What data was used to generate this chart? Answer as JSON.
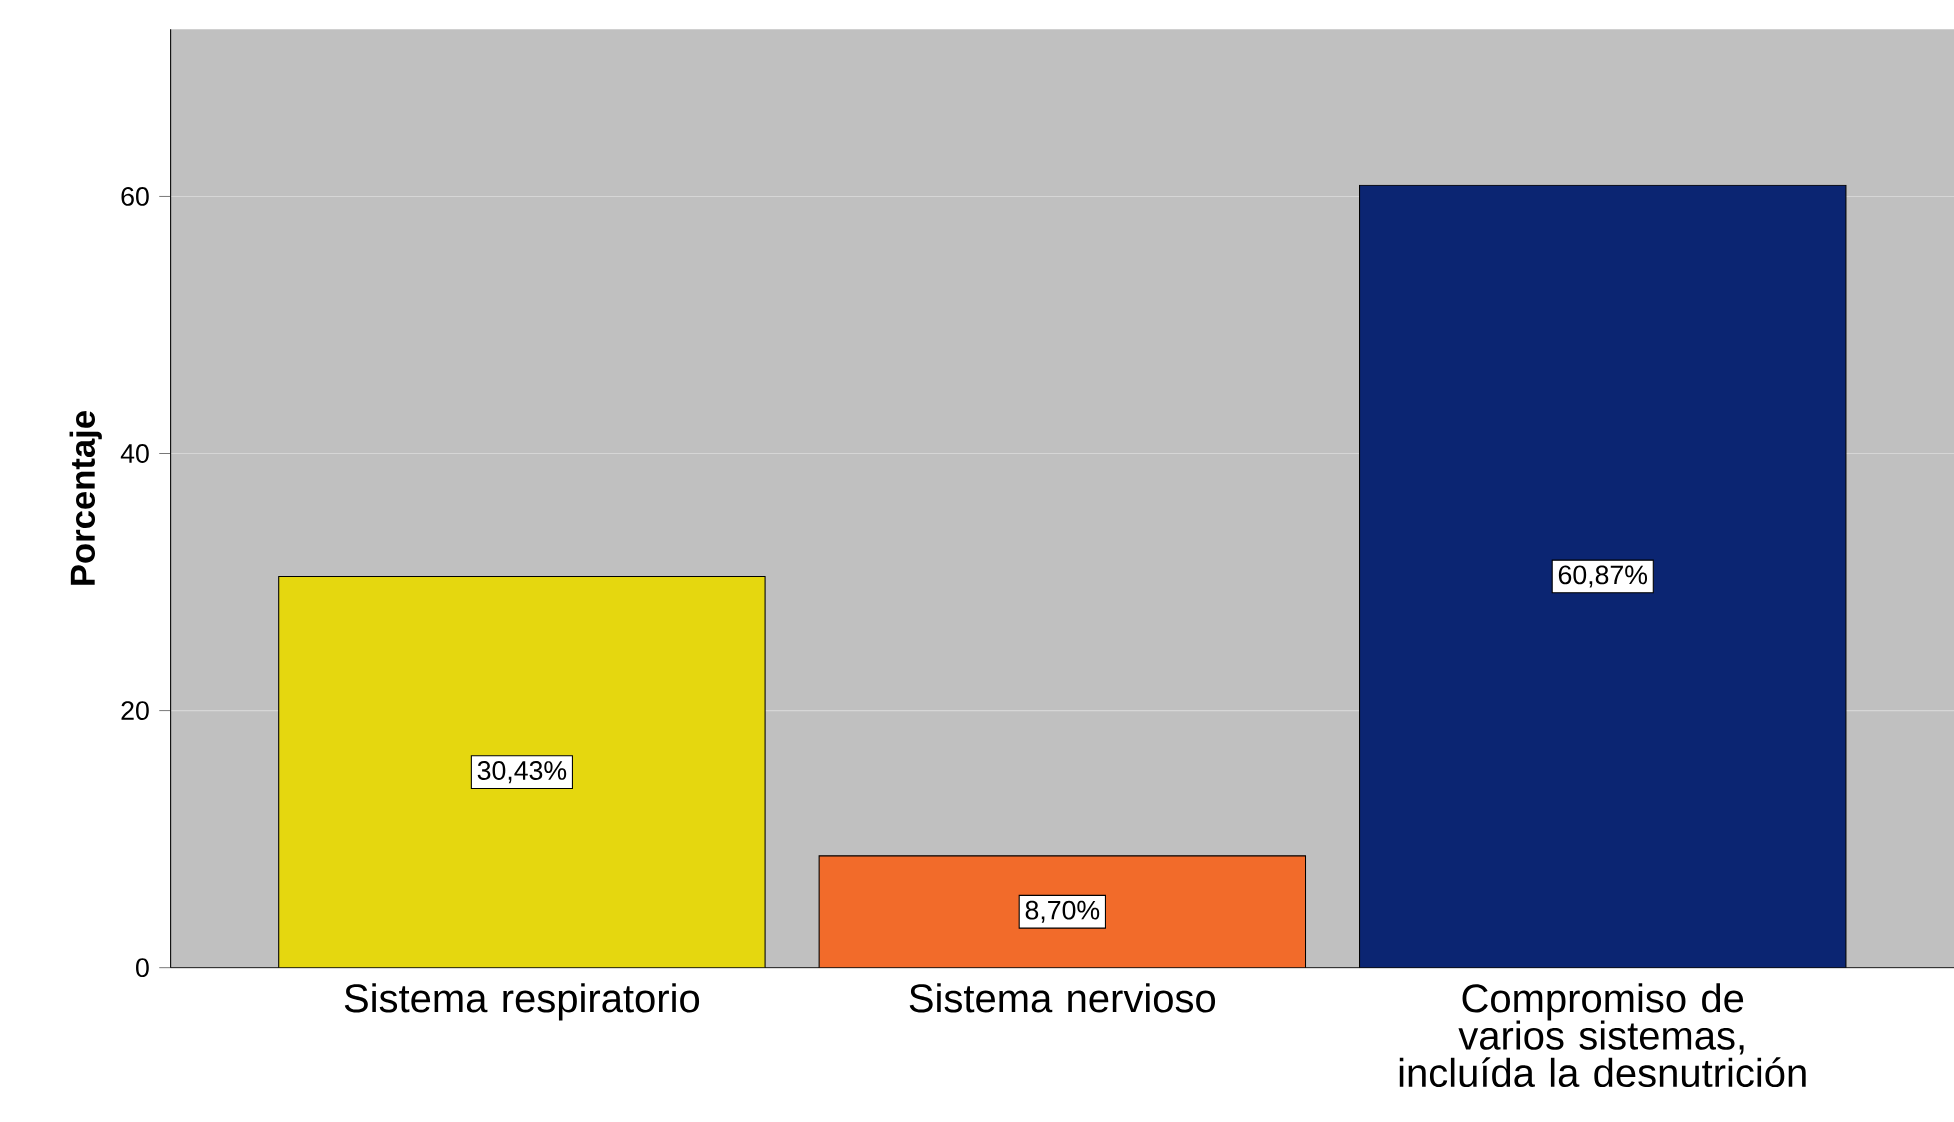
{
  "chart_data": {
    "type": "bar",
    "ylabel": "Porcentaje",
    "categories": [
      "Sistema respiratorio",
      "Sistema nervioso",
      "Compromiso de varios sistemas, incluída la desnutrición"
    ],
    "values": [
      30.43,
      8.7,
      60.87
    ],
    "colors": [
      "#e5d70f",
      "#f26b2a",
      "#0b2572"
    ],
    "value_labels": [
      "30,43%",
      "8,70%",
      "60,87%"
    ],
    "ylim": [
      0,
      73
    ],
    "yticks": [
      0,
      20,
      40,
      60
    ],
    "grid": "y"
  }
}
